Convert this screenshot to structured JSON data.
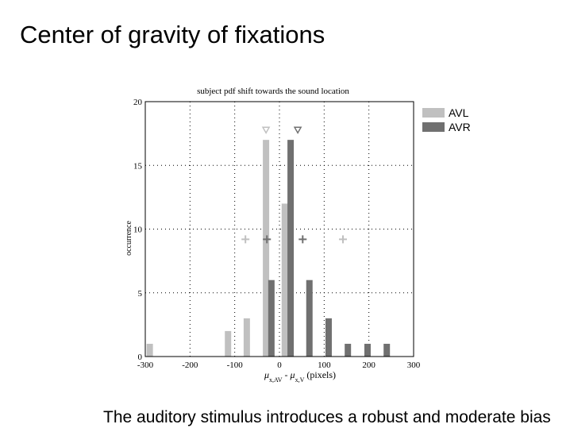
{
  "slide_title": "Center of gravity of fixations",
  "footer": "The auditory stimulus introduces a robust and moderate bias",
  "chart_data": {
    "type": "bar",
    "title": "subject pdf shift towards the sound location",
    "xlabel": [
      "μ",
      "x,AV",
      " - μ",
      "x,V",
      " (pixels)"
    ],
    "ylabel": "occurrence",
    "xlim": [
      -300,
      300
    ],
    "xticks": [
      -300,
      -200,
      -100,
      0,
      100,
      200,
      300
    ],
    "ylim": [
      0,
      20
    ],
    "yticks": [
      0,
      5,
      10,
      15,
      20
    ],
    "grid": true,
    "legend": "right-outside",
    "series": [
      {
        "name": "AVL",
        "color": "#c0c0c0",
        "x": [
          -290,
          -115,
          -73,
          -30,
          12
        ],
        "values": [
          1,
          2,
          3,
          17,
          12
        ],
        "markers": [
          {
            "shape": "triangle",
            "x": -30,
            "y": 17.8
          },
          {
            "shape": "plus",
            "x": -76,
            "y": 9.2
          },
          {
            "shape": "plus",
            "x": 142,
            "y": 9.2
          }
        ]
      },
      {
        "name": "AVR",
        "color": "#707070",
        "x": [
          -18,
          25,
          67,
          110,
          153,
          197,
          240
        ],
        "values": [
          6,
          17,
          6,
          3,
          1,
          1,
          1
        ],
        "markers": [
          {
            "shape": "triangle",
            "x": 41,
            "y": 17.8
          },
          {
            "shape": "plus",
            "x": -28,
            "y": 9.2
          },
          {
            "shape": "plus",
            "x": 52,
            "y": 9.2
          }
        ]
      }
    ]
  }
}
